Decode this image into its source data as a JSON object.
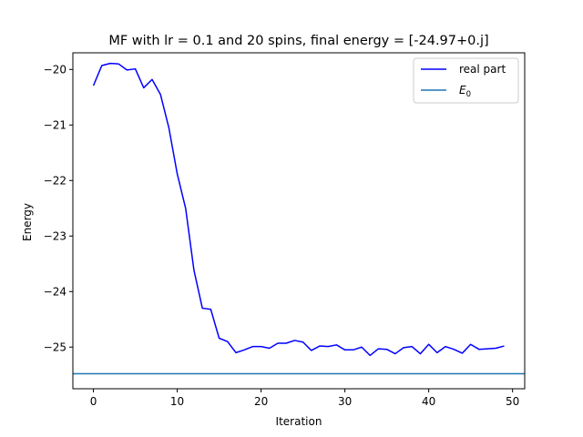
{
  "chart_data": {
    "type": "line",
    "title": "MF with lr = 0.1 and 20 spins, final energy = [-24.97+0.j]",
    "xlabel": "Iteration",
    "ylabel": "Energy",
    "xlim": [
      -2.45,
      51.45
    ],
    "ylim": [
      -25.75,
      -19.7
    ],
    "xticks": [
      0,
      10,
      20,
      30,
      40,
      50
    ],
    "xtick_labels": [
      "0",
      "10",
      "20",
      "30",
      "40",
      "50"
    ],
    "yticks": [
      -20,
      -21,
      -22,
      -23,
      -24,
      -25
    ],
    "ytick_labels": [
      "−20",
      "−21",
      "−22",
      "−23",
      "−24",
      "−25"
    ],
    "grid": false,
    "legend_position": "top-right",
    "series": [
      {
        "name": "real part",
        "color": "#0000ff",
        "x": [
          0,
          1,
          2,
          3,
          4,
          5,
          6,
          7,
          8,
          9,
          10,
          11,
          12,
          13,
          14,
          15,
          16,
          17,
          18,
          19,
          20,
          21,
          22,
          23,
          24,
          25,
          26,
          27,
          28,
          29,
          30,
          31,
          32,
          33,
          34,
          35,
          36,
          37,
          38,
          39,
          40,
          41,
          42,
          43,
          44,
          45,
          46,
          47,
          48,
          49
        ],
        "values": [
          -20.29,
          -19.93,
          -19.89,
          -19.9,
          -20.01,
          -19.99,
          -20.33,
          -20.18,
          -20.45,
          -21.05,
          -21.88,
          -22.5,
          -23.62,
          -24.3,
          -24.32,
          -24.84,
          -24.9,
          -25.1,
          -25.05,
          -24.99,
          -24.99,
          -25.02,
          -24.93,
          -24.93,
          -24.88,
          -24.91,
          -25.06,
          -24.98,
          -24.99,
          -24.96,
          -25.05,
          -25.05,
          -25.0,
          -25.15,
          -25.03,
          -25.04,
          -25.12,
          -25.01,
          -24.99,
          -25.12,
          -24.95,
          -25.1,
          -24.99,
          -25.04,
          -25.11,
          -24.95,
          -25.04,
          -25.03,
          -25.02,
          -24.98
        ]
      }
    ],
    "reference_line": {
      "name": "E",
      "name_subscript": "0",
      "color": "#1f77b4",
      "value": -25.48
    }
  }
}
